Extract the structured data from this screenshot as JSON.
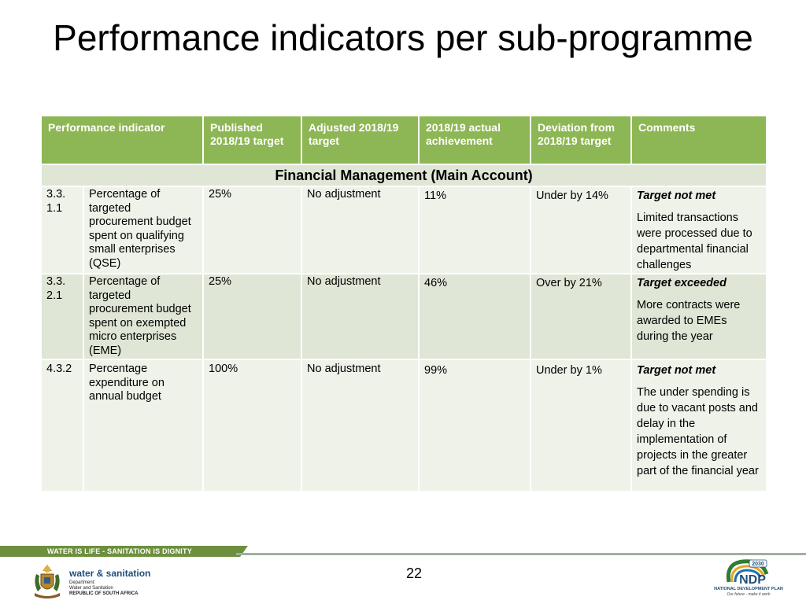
{
  "title": "Performance indicators per sub-programme",
  "table": {
    "headers": [
      "Performance indicator",
      "Published 2018/19 target",
      "Adjusted 2018/19 target",
      "2018/19 actual achievement",
      "Deviation from 2018/19 target",
      "Comments"
    ],
    "section": "Financial Management (Main Account)",
    "rows": [
      {
        "code": "3.3. 1.1",
        "indicator": "Percentage of targeted procurement budget spent on qualifying small enterprises (QSE)",
        "published": "25%",
        "adjusted": "No adjustment",
        "actual": "11%",
        "deviation": "Under by 14%",
        "comment_status": "Target not met",
        "comment_text": "Limited transactions were processed due to departmental financial challenges"
      },
      {
        "code": "3.3. 2.1",
        "indicator": "Percentage of targeted procurement budget spent on exempted micro enterprises (EME)",
        "published": "25%",
        "adjusted": "No adjustment",
        "actual": "46%",
        "deviation": "Over by 21%",
        "comment_status": "Target exceeded",
        "comment_text": "More contracts were awarded to EMEs during the year"
      },
      {
        "code": "4.3.2",
        "indicator": "Percentage expenditure on annual budget",
        "published": "100%",
        "adjusted": "No adjustment",
        "actual": "99%",
        "deviation": "Under by 1%",
        "comment_status": "Target not met",
        "comment_text": "The under spending is due to vacant posts and delay in the implementation of projects in the greater part of the financial year"
      }
    ]
  },
  "footer": {
    "tagline": "WATER IS LIFE - SANITATION IS DIGNITY",
    "page_number": "22",
    "dept_name": "water & sanitation",
    "dept_line1": "Department:",
    "dept_line2": "Water and Sanitation",
    "dept_line3": "REPUBLIC OF SOUTH AFRICA",
    "ndp_year": "2030",
    "ndp_abbr": "NDP",
    "ndp_name": "NATIONAL DEVELOPMENT PLAN",
    "ndp_tagline": "Our future - make it work"
  },
  "colors": {
    "header_green": "#8db654",
    "row_light": "#eef2e9",
    "row_dark": "#dfe6d6",
    "footer_green": "#6d8f3e"
  }
}
